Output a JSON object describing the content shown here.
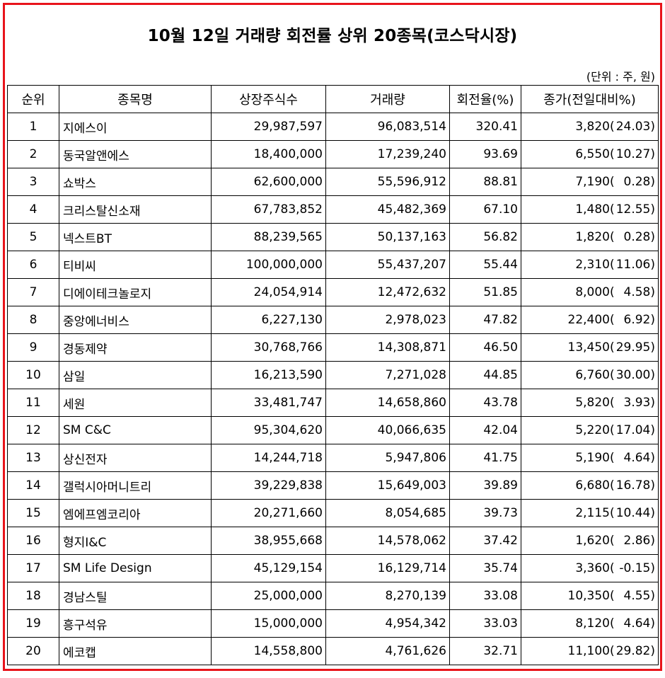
{
  "title": "10월 12일 거래량 회전률 상위 20종목(코스닥시장)",
  "unit_note": "(단위 : 주, 원)",
  "colors": {
    "frame_border": "#e8141b"
  },
  "columns": [
    "순위",
    "종목명",
    "상장주식수",
    "거래량",
    "회전율(%)",
    "종가(전일대비%)"
  ],
  "rows": [
    {
      "rank": "1",
      "name": "지에스이",
      "listed": "29,987,597",
      "volume": "96,083,514",
      "turnover": "320.41",
      "close": "3,820",
      "paren": "(",
      "change": "24.03)"
    },
    {
      "rank": "2",
      "name": "동국알앤에스",
      "listed": "18,400,000",
      "volume": "17,239,240",
      "turnover": "93.69",
      "close": "6,550",
      "paren": "(",
      "change": "10.27)"
    },
    {
      "rank": "3",
      "name": "쇼박스",
      "listed": "62,600,000",
      "volume": "55,596,912",
      "turnover": "88.81",
      "close": "7,190",
      "paren": "(",
      "change": "0.28)"
    },
    {
      "rank": "4",
      "name": "크리스탈신소재",
      "listed": "67,783,852",
      "volume": "45,482,369",
      "turnover": "67.10",
      "close": "1,480",
      "paren": "(",
      "change": "12.55)"
    },
    {
      "rank": "5",
      "name": "넥스트BT",
      "listed": "88,239,565",
      "volume": "50,137,163",
      "turnover": "56.82",
      "close": "1,820",
      "paren": "(",
      "change": "0.28)"
    },
    {
      "rank": "6",
      "name": "티비씨",
      "listed": "100,000,000",
      "volume": "55,437,207",
      "turnover": "55.44",
      "close": "2,310",
      "paren": "(",
      "change": "11.06)"
    },
    {
      "rank": "7",
      "name": "디에이테크놀로지",
      "listed": "24,054,914",
      "volume": "12,472,632",
      "turnover": "51.85",
      "close": "8,000",
      "paren": "(",
      "change": "4.58)"
    },
    {
      "rank": "8",
      "name": "중앙에너비스",
      "listed": "6,227,130",
      "volume": "2,978,023",
      "turnover": "47.82",
      "close": "22,400",
      "paren": "(",
      "change": "6.92)"
    },
    {
      "rank": "9",
      "name": "경동제약",
      "listed": "30,768,766",
      "volume": "14,308,871",
      "turnover": "46.50",
      "close": "13,450",
      "paren": "(",
      "change": "29.95)"
    },
    {
      "rank": "10",
      "name": "삼일",
      "listed": "16,213,590",
      "volume": "7,271,028",
      "turnover": "44.85",
      "close": "6,760",
      "paren": "(",
      "change": "30.00)"
    },
    {
      "rank": "11",
      "name": "세원",
      "listed": "33,481,747",
      "volume": "14,658,860",
      "turnover": "43.78",
      "close": "5,820",
      "paren": "(",
      "change": "3.93)"
    },
    {
      "rank": "12",
      "name": "SM C&C",
      "listed": "95,304,620",
      "volume": "40,066,635",
      "turnover": "42.04",
      "close": "5,220",
      "paren": "(",
      "change": "17.04)"
    },
    {
      "rank": "13",
      "name": "상신전자",
      "listed": "14,244,718",
      "volume": "5,947,806",
      "turnover": "41.75",
      "close": "5,190",
      "paren": "(",
      "change": "4.64)"
    },
    {
      "rank": "14",
      "name": "갤럭시아머니트리",
      "listed": "39,229,838",
      "volume": "15,649,003",
      "turnover": "39.89",
      "close": "6,680",
      "paren": "(",
      "change": "16.78)"
    },
    {
      "rank": "15",
      "name": "엠에프엠코리아",
      "listed": "20,271,660",
      "volume": "8,054,685",
      "turnover": "39.73",
      "close": "2,115",
      "paren": "(",
      "change": "10.44)"
    },
    {
      "rank": "16",
      "name": "형지I&C",
      "listed": "38,955,668",
      "volume": "14,578,062",
      "turnover": "37.42",
      "close": "1,620",
      "paren": "(",
      "change": "2.86)"
    },
    {
      "rank": "17",
      "name": "SM Life Design",
      "listed": "45,129,154",
      "volume": "16,129,714",
      "turnover": "35.74",
      "close": "3,360",
      "paren": "(",
      "change": "-0.15)"
    },
    {
      "rank": "18",
      "name": "경남스틸",
      "listed": "25,000,000",
      "volume": "8,270,139",
      "turnover": "33.08",
      "close": "10,350",
      "paren": "(",
      "change": "4.55)"
    },
    {
      "rank": "19",
      "name": "흥구석유",
      "listed": "15,000,000",
      "volume": "4,954,342",
      "turnover": "33.03",
      "close": "8,120",
      "paren": "(",
      "change": "4.64)"
    },
    {
      "rank": "20",
      "name": "에코캡",
      "listed": "14,558,800",
      "volume": "4,761,626",
      "turnover": "32.71",
      "close": "11,100",
      "paren": "(",
      "change": "29.82)"
    }
  ]
}
